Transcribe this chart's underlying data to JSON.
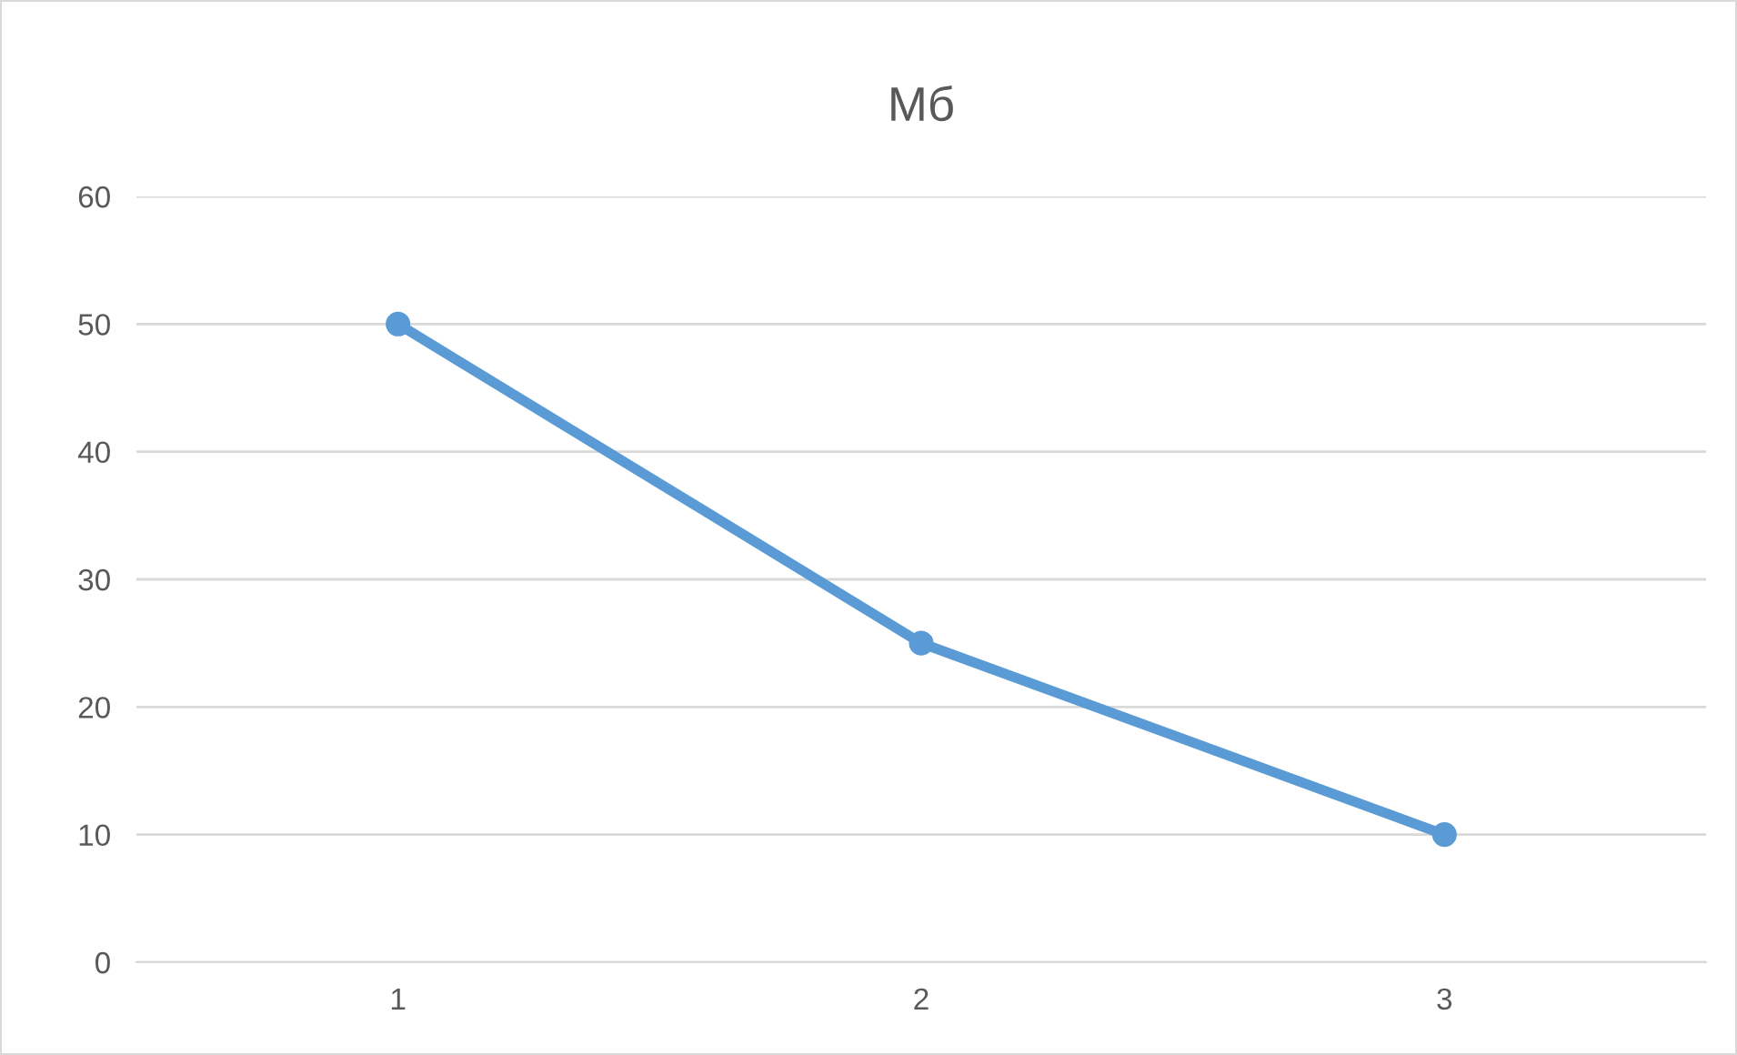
{
  "chart_data": {
    "type": "line",
    "title": "Мб",
    "categories": [
      "1",
      "2",
      "3"
    ],
    "series": [
      {
        "color": "#5b9bd5",
        "values": [
          50,
          25,
          10
        ]
      }
    ],
    "ylim": [
      0,
      60
    ],
    "yticks": [
      0,
      10,
      20,
      30,
      40,
      50,
      60
    ],
    "grid": "y",
    "marker": "circle",
    "line_style": "solid"
  }
}
